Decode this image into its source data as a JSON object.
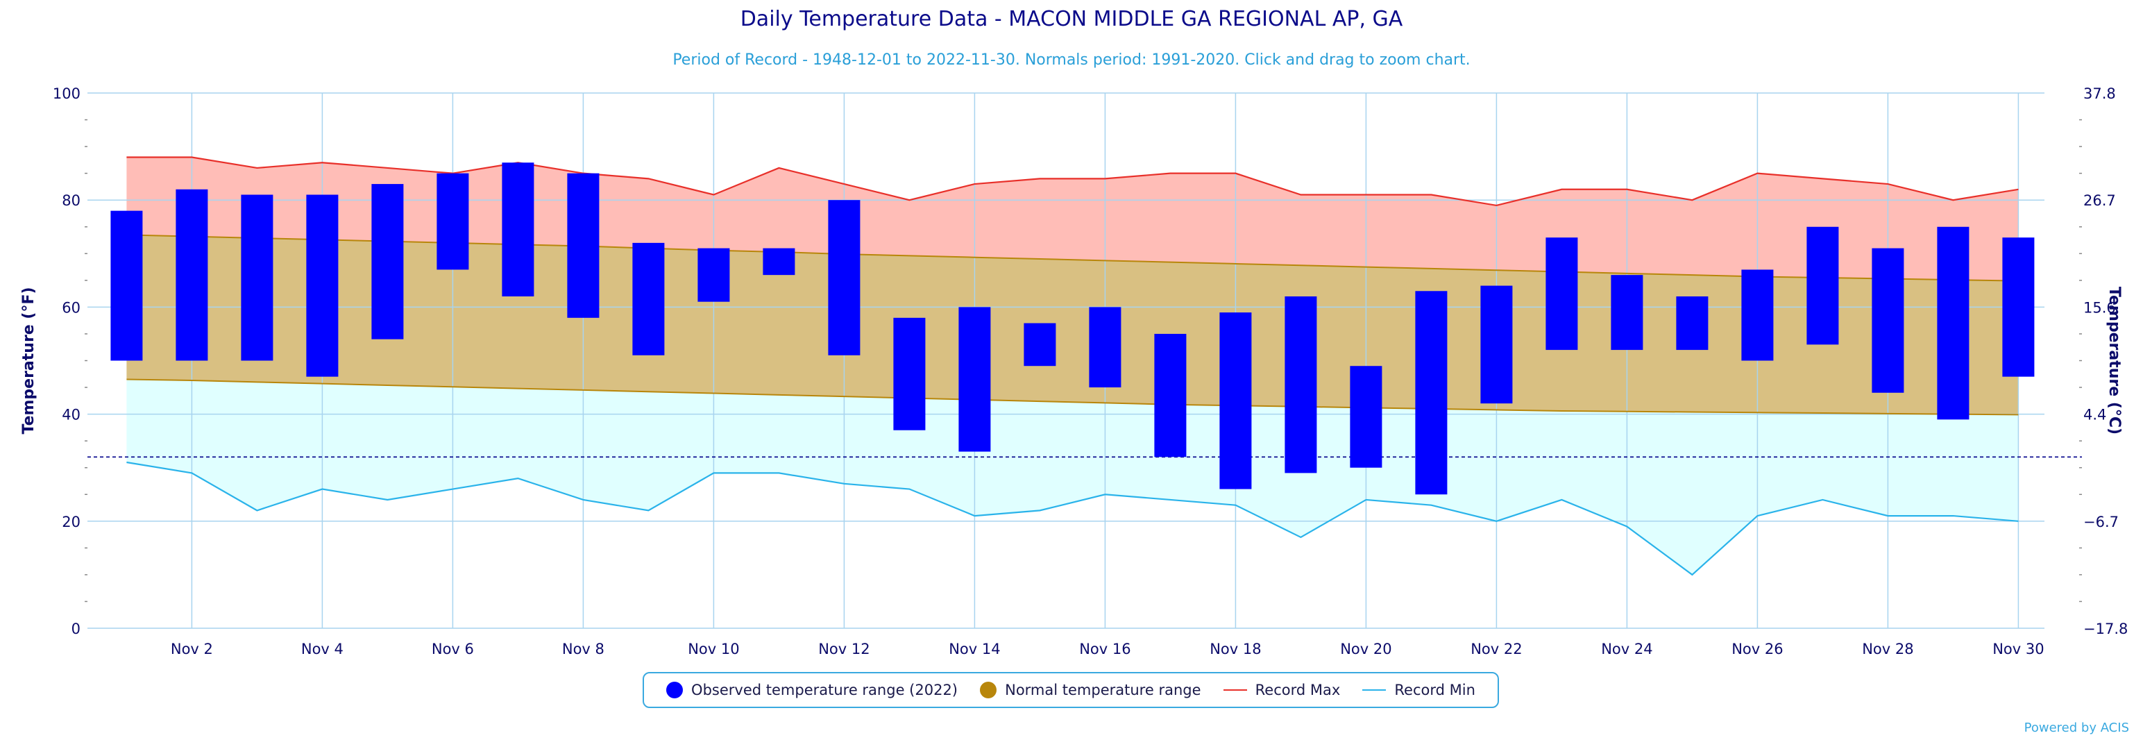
{
  "title": "Daily Temperature Data - MACON MIDDLE GA REGIONAL AP, GA",
  "subtitle": "Period of Record - 1948-12-01 to 2022-11-30. Normals period: 1991-2020. Click and drag to zoom chart.",
  "credit": "Powered by ACIS",
  "colors": {
    "observed": "#0000ff",
    "normal_fill": "#d9c082",
    "normal_line": "#b8860b",
    "record_max_fill": "#ffbdb7",
    "record_max_line": "#e8302a",
    "record_min_fill": "#e0ffff",
    "record_min_line": "#2ab3ea",
    "freezing_line": "#00008b",
    "grid": "#a8d4ef",
    "axis_text": "#0b0b6a"
  },
  "legend": [
    {
      "label": "Observed temperature range (2022)",
      "symbol": "dot",
      "color": "#0000ff"
    },
    {
      "label": "Normal temperature range",
      "symbol": "dot",
      "color": "#b8860b"
    },
    {
      "label": "Record Max",
      "symbol": "line",
      "color": "#e8302a"
    },
    {
      "label": "Record Min",
      "symbol": "line",
      "color": "#2ab3ea"
    }
  ],
  "chart_data": {
    "type": "bar",
    "ylabel": "Temperature (°F)",
    "ylabel_right": "Temperature (°C)",
    "ylim": [
      0,
      100
    ],
    "yticks": [
      0,
      20,
      40,
      60,
      80,
      100
    ],
    "yticks_right": [
      "−17.8",
      "−6.7",
      "4.4",
      "15.6",
      "26.7",
      "37.8"
    ],
    "xlim_days": [
      0.4,
      30.4
    ],
    "xtick_days": [
      2,
      4,
      6,
      8,
      10,
      12,
      14,
      16,
      18,
      20,
      22,
      24,
      26,
      28,
      30
    ],
    "xtick_labels": [
      "Nov 2",
      "Nov 4",
      "Nov 6",
      "Nov 8",
      "Nov 10",
      "Nov 12",
      "Nov 14",
      "Nov 16",
      "Nov 18",
      "Nov 20",
      "Nov 22",
      "Nov 24",
      "Nov 26",
      "Nov 28",
      "Nov 30"
    ],
    "freezing_line": 32,
    "days": [
      1,
      2,
      3,
      4,
      5,
      6,
      7,
      8,
      9,
      10,
      11,
      12,
      13,
      14,
      15,
      16,
      17,
      18,
      19,
      20,
      21,
      22,
      23,
      24,
      25,
      26,
      27,
      28,
      29,
      30
    ],
    "series": [
      {
        "name": "Observed temperature range (2022)",
        "low": [
          50,
          50,
          50,
          47,
          54,
          67,
          62,
          58,
          51,
          61,
          66,
          51,
          37,
          33,
          49,
          45,
          32,
          26,
          29,
          30,
          25,
          42,
          52,
          52,
          52,
          50,
          53,
          44,
          39,
          47
        ],
        "high": [
          78,
          82,
          81,
          81,
          83,
          85,
          87,
          85,
          72,
          71,
          71,
          80,
          58,
          60,
          57,
          60,
          55,
          59,
          62,
          49,
          63,
          64,
          73,
          66,
          62,
          67,
          75,
          71,
          75,
          73
        ]
      },
      {
        "name": "Normal temperature range",
        "low": [
          46.5,
          46.3,
          46,
          45.7,
          45.4,
          45.1,
          44.8,
          44.5,
          44.2,
          43.9,
          43.6,
          43.3,
          43,
          42.7,
          42.4,
          42.1,
          41.8,
          41.6,
          41.4,
          41.2,
          41,
          40.8,
          40.6,
          40.5,
          40.4,
          40.3,
          40.2,
          40.1,
          40,
          39.9
        ],
        "high": [
          73.5,
          73.2,
          72.9,
          72.6,
          72.3,
          72,
          71.7,
          71.4,
          71,
          70.6,
          70.3,
          69.9,
          69.6,
          69.3,
          69,
          68.7,
          68.4,
          68.1,
          67.8,
          67.5,
          67.2,
          66.9,
          66.6,
          66.3,
          66,
          65.7,
          65.5,
          65.3,
          65.1,
          64.9
        ]
      },
      {
        "name": "Record Max",
        "values": [
          88,
          88,
          86,
          87,
          86,
          85,
          87,
          85,
          84,
          81,
          86,
          83,
          80,
          83,
          84,
          84,
          85,
          85,
          81,
          81,
          81,
          79,
          82,
          82,
          80,
          85,
          84,
          83,
          80,
          82
        ]
      },
      {
        "name": "Record Min",
        "values": [
          31,
          29,
          22,
          26,
          24,
          26,
          28,
          24,
          22,
          29,
          29,
          27,
          26,
          21,
          22,
          25,
          24,
          23,
          17,
          24,
          23,
          20,
          24,
          19,
          10,
          21,
          24,
          21,
          21,
          20
        ]
      }
    ]
  }
}
